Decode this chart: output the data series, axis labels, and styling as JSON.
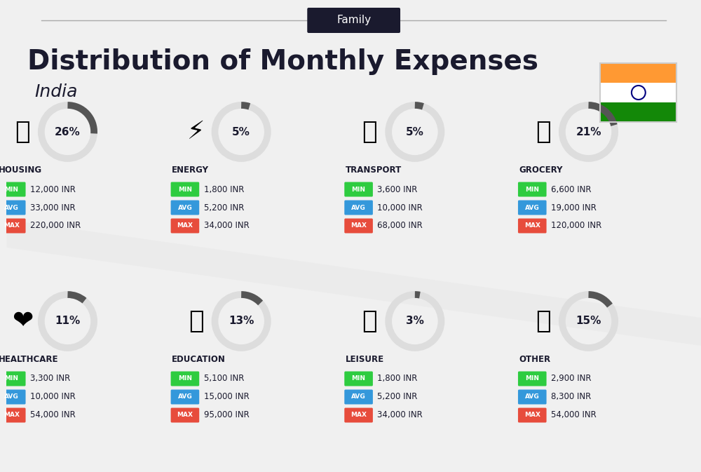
{
  "title": "Distribution of Monthly Expenses",
  "subtitle": "India",
  "header_label": "Family",
  "background_color": "#f0f0f0",
  "categories": [
    {
      "name": "HOUSING",
      "pct": 26,
      "min_val": "12,000 INR",
      "avg_val": "33,000 INR",
      "max_val": "220,000 INR",
      "row": 0,
      "col": 0
    },
    {
      "name": "ENERGY",
      "pct": 5,
      "min_val": "1,800 INR",
      "avg_val": "5,200 INR",
      "max_val": "34,000 INR",
      "row": 0,
      "col": 1
    },
    {
      "name": "TRANSPORT",
      "pct": 5,
      "min_val": "3,600 INR",
      "avg_val": "10,000 INR",
      "max_val": "68,000 INR",
      "row": 0,
      "col": 2
    },
    {
      "name": "GROCERY",
      "pct": 21,
      "min_val": "6,600 INR",
      "avg_val": "19,000 INR",
      "max_val": "120,000 INR",
      "row": 0,
      "col": 3
    },
    {
      "name": "HEALTHCARE",
      "pct": 11,
      "min_val": "3,300 INR",
      "avg_val": "10,000 INR",
      "max_val": "54,000 INR",
      "row": 1,
      "col": 0
    },
    {
      "name": "EDUCATION",
      "pct": 13,
      "min_val": "5,100 INR",
      "avg_val": "15,000 INR",
      "max_val": "95,000 INR",
      "row": 1,
      "col": 1
    },
    {
      "name": "LEISURE",
      "pct": 3,
      "min_val": "1,800 INR",
      "avg_val": "5,200 INR",
      "max_val": "34,000 INR",
      "row": 1,
      "col": 2
    },
    {
      "name": "OTHER",
      "pct": 15,
      "min_val": "2,900 INR",
      "avg_val": "8,300 INR",
      "max_val": "54,000 INR",
      "row": 1,
      "col": 3
    }
  ],
  "min_color": "#2ecc40",
  "avg_color": "#3498db",
  "max_color": "#e74c3c",
  "arc_color": "#555555",
  "arc_bg_color": "#dddddd",
  "flag_orange": "#FF9933",
  "flag_green": "#138808",
  "flag_blue": "#000080"
}
